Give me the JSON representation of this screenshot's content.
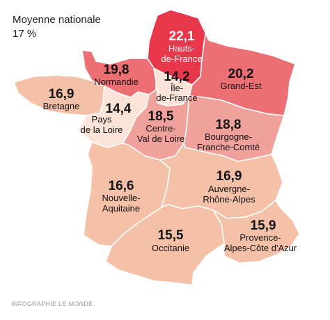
{
  "legend": {
    "title": "Moyenne nationale",
    "value": "17 %"
  },
  "credit": "INFOGRAPHIE LE MONDE",
  "colors": {
    "highest": "#e8374b",
    "high": "#ec6f73",
    "mid": "#f1a19c",
    "low": "#f4c0a8",
    "lowest": "#fbe3d8"
  },
  "regions": [
    {
      "id": "hauts-de-france",
      "value": "22,1",
      "name_lines": [
        "Hauts-",
        "de-France"
      ],
      "color": "#e8374b"
    },
    {
      "id": "normandie",
      "value": "19,8",
      "name_lines": [
        "Normandie"
      ],
      "color": "#ec6f73"
    },
    {
      "id": "ile-de-france",
      "value": "14,2",
      "name_lines": [
        "Île-",
        "de-France"
      ],
      "color": "#fbe3d8"
    },
    {
      "id": "grand-est",
      "value": "20,2",
      "name_lines": [
        "Grand-Est"
      ],
      "color": "#ec6f73"
    },
    {
      "id": "bretagne",
      "value": "16,9",
      "name_lines": [
        "Bretagne"
      ],
      "color": "#f4c0a8"
    },
    {
      "id": "pays-de-la-loire",
      "value": "14,4",
      "name_lines": [
        "Pays",
        "de la Loire"
      ],
      "color": "#fbe3d8"
    },
    {
      "id": "centre-val-de-loire",
      "value": "18,5",
      "name_lines": [
        "Centre-",
        "Val de Loire"
      ],
      "color": "#f1a19c"
    },
    {
      "id": "bourgogne-franche-comte",
      "value": "18,8",
      "name_lines": [
        "Bourgogne-",
        "Franche-Comté"
      ],
      "color": "#f1a19c"
    },
    {
      "id": "nouvelle-aquitaine",
      "value": "16,6",
      "name_lines": [
        "Nouvelle-",
        "Aquitaine"
      ],
      "color": "#f4c0a8"
    },
    {
      "id": "auvergne-rhone-alpes",
      "value": "16,9",
      "name_lines": [
        "Auvergne-",
        "Rhône-Alpes"
      ],
      "color": "#f4c0a8"
    },
    {
      "id": "occitanie",
      "value": "15,5",
      "name_lines": [
        "Occitanie"
      ],
      "color": "#f4c0a8"
    },
    {
      "id": "provence-alpes-cote-d-azur",
      "value": "15,9",
      "name_lines": [
        "Provence-",
        "Alpes-Côte d'Azur"
      ],
      "color": "#f4c0a8"
    }
  ]
}
